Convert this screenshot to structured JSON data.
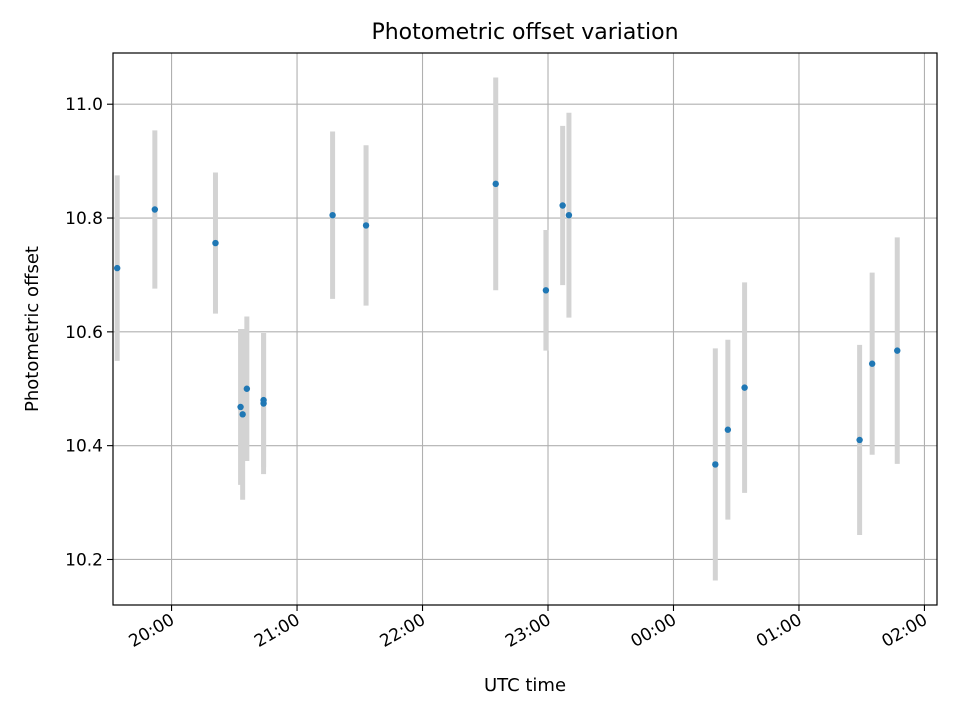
{
  "chart_data": {
    "type": "scatter",
    "title": "Photometric offset variation",
    "xlabel": "UTC time",
    "ylabel": "Photometric offset",
    "x_ticks": [
      "20:00",
      "21:00",
      "22:00",
      "23:00",
      "00:00",
      "01:00",
      "02:00"
    ],
    "y_ticks": [
      "10.2",
      "10.4",
      "10.6",
      "10.8",
      "11.0"
    ],
    "xlim": [
      "19:32",
      "02:06"
    ],
    "ylim": [
      10.12,
      11.09
    ],
    "grid": true,
    "point_color": "#1f77b4",
    "errorbar_color": "#d3d3d3",
    "series": [
      {
        "points": [
          {
            "t": "19:34",
            "y": 10.712,
            "yerr": 0.163
          },
          {
            "t": "19:52",
            "y": 10.815,
            "yerr": 0.139
          },
          {
            "t": "20:21",
            "y": 10.756,
            "yerr": 0.124
          },
          {
            "t": "20:33",
            "y": 10.468,
            "yerr": 0.137
          },
          {
            "t": "20:34",
            "y": 10.455,
            "yerr": 0.15
          },
          {
            "t": "20:36",
            "y": 10.5,
            "yerr": 0.127
          },
          {
            "t": "20:44",
            "y": 10.48,
            "yerr": 0.118
          },
          {
            "t": "20:44",
            "y": 10.474,
            "yerr": 0.124
          },
          {
            "t": "21:17",
            "y": 10.805,
            "yerr": 0.147
          },
          {
            "t": "21:33",
            "y": 10.787,
            "yerr": 0.141
          },
          {
            "t": "22:35",
            "y": 10.86,
            "yerr": 0.187
          },
          {
            "t": "22:59",
            "y": 10.673,
            "yerr": 0.106
          },
          {
            "t": "23:07",
            "y": 10.822,
            "yerr": 0.14
          },
          {
            "t": "23:10",
            "y": 10.805,
            "yerr": 0.18
          },
          {
            "t": "00:20",
            "y": 10.367,
            "yerr": 0.204
          },
          {
            "t": "00:26",
            "y": 10.428,
            "yerr": 0.158
          },
          {
            "t": "00:34",
            "y": 10.502,
            "yerr": 0.185
          },
          {
            "t": "01:29",
            "y": 10.41,
            "yerr": 0.167
          },
          {
            "t": "01:35",
            "y": 10.544,
            "yerr": 0.16
          },
          {
            "t": "01:47",
            "y": 10.567,
            "yerr": 0.199
          }
        ]
      }
    ]
  }
}
